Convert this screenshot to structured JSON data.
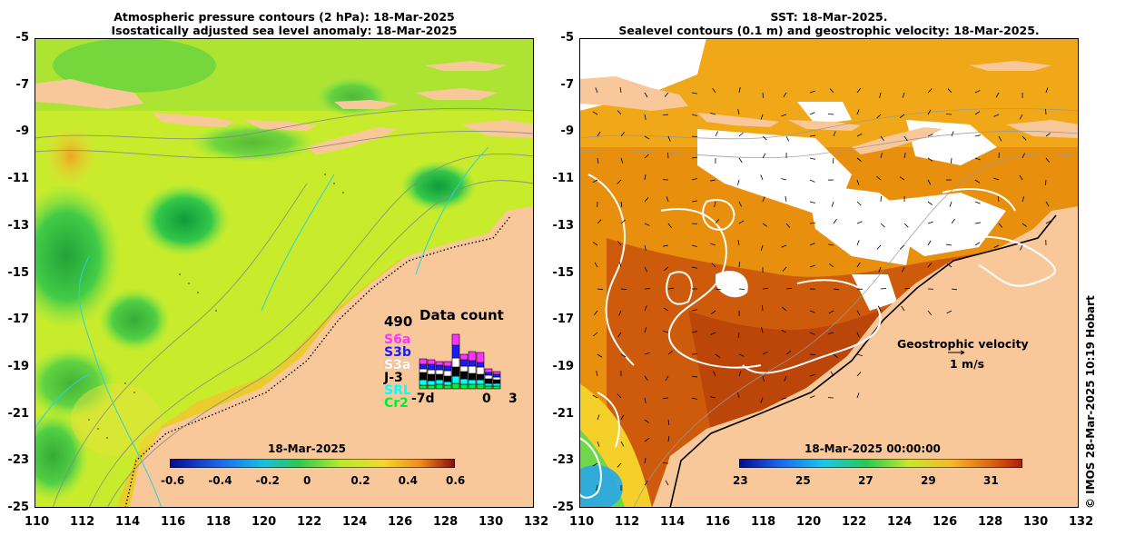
{
  "left_panel": {
    "title_line1": "Atmospheric pressure contours (2 hPa): 18-Mar-2025",
    "title_line2": "Isostatically adjusted sea level anomaly: 18-Mar-2025",
    "colorbar": {
      "title": "18-Mar-2025",
      "ticks": [
        "-0.6",
        "-0.4",
        "-0.2",
        "0",
        "0.2",
        "0.4",
        "0.6"
      ]
    },
    "inset": {
      "title": "Data count",
      "max_value": "490",
      "missions": [
        {
          "name": "S6a",
          "color": "#ff33ff"
        },
        {
          "name": "S3b",
          "color": "#1a1aff"
        },
        {
          "name": "S3a",
          "color": "#ffffff"
        },
        {
          "name": "J-3",
          "color": "#000000"
        },
        {
          "name": "SRL",
          "color": "#00ffff"
        },
        {
          "name": "Cr2",
          "color": "#00ee33"
        }
      ],
      "x_labels": [
        "-7d",
        "0",
        "3"
      ]
    }
  },
  "right_panel": {
    "title_line1": "SST: 18-Mar-2025.",
    "title_line2": "Sealevel contours (0.1 m) and geostrophic velocity: 18-Mar-2025.",
    "colorbar": {
      "title": "18-Mar-2025 00:00:00",
      "ticks": [
        "23",
        "25",
        "27",
        "29",
        "31"
      ]
    },
    "velocity_label": "Geostrophic velocity",
    "velocity_scale": "1 m/s"
  },
  "y_axis_ticks": [
    "-5",
    "-7",
    "-9",
    "-11",
    "-13",
    "-15",
    "-17",
    "-19",
    "-21",
    "-23",
    "-25"
  ],
  "x_axis_ticks": [
    "110",
    "112",
    "114",
    "116",
    "118",
    "120",
    "122",
    "124",
    "126",
    "128",
    "130",
    "132"
  ],
  "credit": "© IMOS 28-Mar-2025 10:19 Hobart"
}
